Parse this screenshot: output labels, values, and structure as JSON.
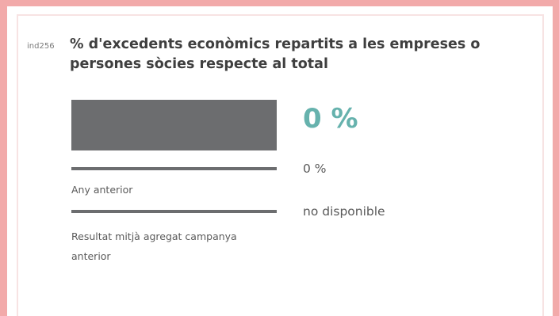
{
  "indicator": {
    "code": "ind256",
    "title": "% d'excedents econòmics repartits a les empreses o persones sòcies respecte al total"
  },
  "result": {
    "value": "0 %",
    "bar_fraction": 1.0
  },
  "previous_year": {
    "label": "Any anterior",
    "value": "0 %"
  },
  "previous_campaign_average": {
    "label": "Resultat mitjà agregat campanya anterior",
    "value": "no disponible"
  },
  "colors": {
    "border": "#f2aaaa",
    "bar": "#6c6d6f",
    "accent": "#66b2ad",
    "text": "#3f3f3f"
  }
}
